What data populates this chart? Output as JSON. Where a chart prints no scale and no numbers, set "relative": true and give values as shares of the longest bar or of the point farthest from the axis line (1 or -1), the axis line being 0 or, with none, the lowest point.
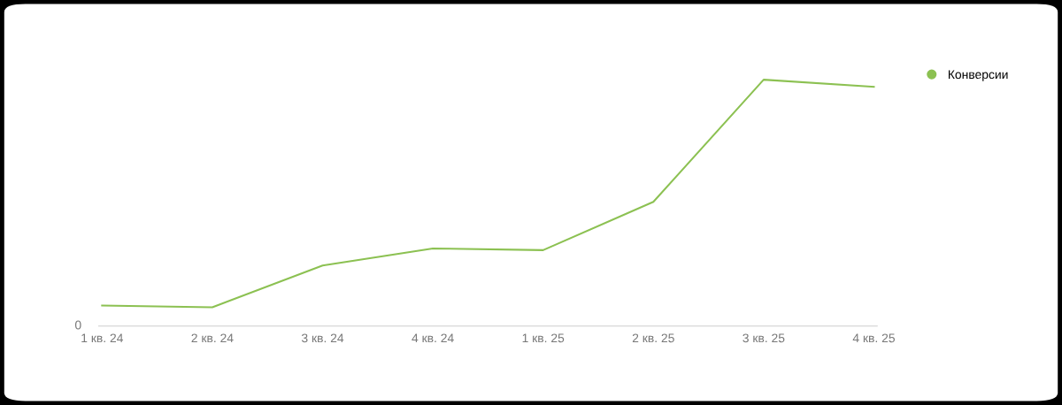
{
  "chart_data": {
    "type": "line",
    "relative": true,
    "categories": [
      "1 кв. 24",
      "2 кв. 24",
      "3 кв. 24",
      "4 кв. 24",
      "1 кв. 25",
      "2 кв. 25",
      "3 кв. 25",
      "4 кв. 25"
    ],
    "series": [
      {
        "name": "Конверсии",
        "color": "#8cc152",
        "values": [
          0.083,
          0.076,
          0.246,
          0.315,
          0.308,
          0.504,
          1,
          0.971
        ]
      }
    ],
    "annotations": [
      "0"
    ],
    "legend": "top right",
    "marker": "none",
    "line_style": "solid"
  }
}
